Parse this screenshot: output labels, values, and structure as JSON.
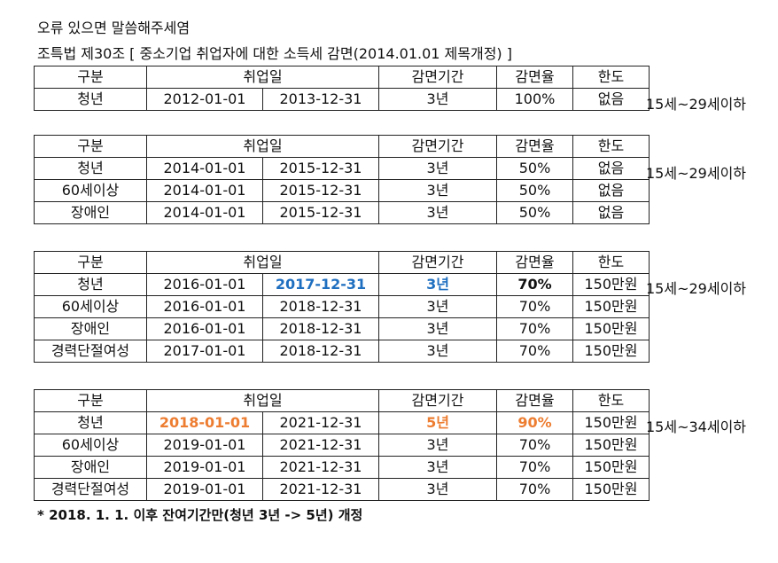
{
  "header": {
    "line1": "오류 있으면 말씀해주세염",
    "line2": "조특법 제30조  [ 중소기업 취업자에 대한 소득세 감면(2014.01.01 제목개정) ]"
  },
  "columns": {
    "category": "구분",
    "employment_date": "취업일",
    "period": "감면기간",
    "rate": "감면율",
    "limit": "한도"
  },
  "tables": [
    {
      "age_note": "15세~29세이하",
      "rows": [
        {
          "category": "청년",
          "start": "2012-01-01",
          "end": "2013-12-31",
          "period": "3년",
          "rate": "100%",
          "limit": "없음"
        }
      ]
    },
    {
      "age_note": "15세~29세이하",
      "rows": [
        {
          "category": "청년",
          "start": "2014-01-01",
          "end": "2015-12-31",
          "period": "3년",
          "rate": "50%",
          "limit": "없음"
        },
        {
          "category": "60세이상",
          "start": "2014-01-01",
          "end": "2015-12-31",
          "period": "3년",
          "rate": "50%",
          "limit": "없음"
        },
        {
          "category": "장애인",
          "start": "2014-01-01",
          "end": "2015-12-31",
          "period": "3년",
          "rate": "50%",
          "limit": "없음"
        }
      ]
    },
    {
      "age_note": "15세~29세이하",
      "rows": [
        {
          "category": "청년",
          "start": "2016-01-01",
          "end": "2017-12-31",
          "period": "3년",
          "rate": "70%",
          "limit": "150만원"
        },
        {
          "category": "60세이상",
          "start": "2016-01-01",
          "end": "2018-12-31",
          "period": "3년",
          "rate": "70%",
          "limit": "150만원"
        },
        {
          "category": "장애인",
          "start": "2016-01-01",
          "end": "2018-12-31",
          "period": "3년",
          "rate": "70%",
          "limit": "150만원"
        },
        {
          "category": "경력단절여성",
          "start": "2017-01-01",
          "end": "2018-12-31",
          "period": "3년",
          "rate": "70%",
          "limit": "150만원"
        }
      ]
    },
    {
      "age_note": "15세~34세이하",
      "rows": [
        {
          "category": "청년",
          "start": "2018-01-01",
          "end": "2021-12-31",
          "period": "5년",
          "rate": "90%",
          "limit": "150만원"
        },
        {
          "category": "60세이상",
          "start": "2019-01-01",
          "end": "2021-12-31",
          "period": "3년",
          "rate": "70%",
          "limit": "150만원"
        },
        {
          "category": "장애인",
          "start": "2019-01-01",
          "end": "2021-12-31",
          "period": "3년",
          "rate": "70%",
          "limit": "150만원"
        },
        {
          "category": "경력단절여성",
          "start": "2019-01-01",
          "end": "2021-12-31",
          "period": "3년",
          "rate": "70%",
          "limit": "150만원"
        }
      ]
    }
  ],
  "highlight_colors": {
    "blue": "#1f6fc0",
    "orange": "#ed7d31"
  },
  "footer": "* 2018. 1. 1. 이후 잔여기간만(청년 3년 -> 5년) 개정"
}
